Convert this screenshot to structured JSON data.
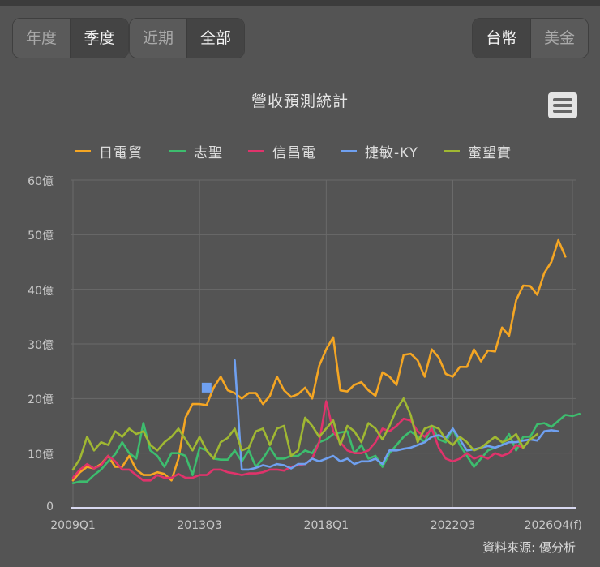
{
  "period_toggle": {
    "options": [
      {
        "label": "年度",
        "active": false
      },
      {
        "label": "季度",
        "active": true
      }
    ]
  },
  "range_toggle": {
    "options": [
      {
        "label": "近期",
        "active": false
      },
      {
        "label": "全部",
        "active": true
      }
    ]
  },
  "currency_toggle": {
    "options": [
      {
        "label": "台幣",
        "active": true
      },
      {
        "label": "美金",
        "active": false
      }
    ]
  },
  "menu_icon": "hamburger-menu-icon",
  "source_credit": "資料來源: 優分析",
  "chart_data": {
    "type": "line",
    "title": "營收預測統計",
    "xlabel": "",
    "ylabel": "",
    "unit": "億",
    "ylim": [
      0,
      60
    ],
    "yticks": [
      "0",
      "10億",
      "20億",
      "30億",
      "40億",
      "50億",
      "60億"
    ],
    "xticks": [
      "2009Q1",
      "2013Q3",
      "2018Q1",
      "2022Q3",
      "2026Q4(f)"
    ],
    "grid": true,
    "legend_position": "top",
    "x_start": "2009Q1",
    "x_end": "2026Q4",
    "series": [
      {
        "name": "日電貿",
        "color": "#f5a623",
        "start": 0,
        "values": [
          5.0,
          6.5,
          7.5,
          7.2,
          8.0,
          9.5,
          7.5,
          7.5,
          9.5,
          7.0,
          6.0,
          6.0,
          6.5,
          6.2,
          5.0,
          9.0,
          16.5,
          19.0,
          19.0,
          18.8,
          22.0,
          24.0,
          21.5,
          21.0,
          20.0,
          21.0,
          21.0,
          19.0,
          20.5,
          24.0,
          21.5,
          20.3,
          20.8,
          22.0,
          20.0,
          26.0,
          29.0,
          31.2,
          21.5,
          21.3,
          22.5,
          23.0,
          21.5,
          20.5,
          24.8,
          24.0,
          22.5,
          28.0,
          28.2,
          27.0,
          24.0,
          29.0,
          27.5,
          24.5,
          24.0,
          25.8,
          25.8,
          29.0,
          26.8,
          28.8,
          28.6,
          33.0,
          31.5,
          38.0,
          40.7,
          40.6,
          39.0,
          43.0,
          45.0,
          49.0,
          46.0
        ]
      },
      {
        "name": "志聖",
        "color": "#3dbd6e",
        "start": 0,
        "values": [
          4.5,
          4.8,
          4.8,
          6.0,
          7.0,
          8.5,
          9.8,
          12.0,
          10.0,
          9.0,
          15.5,
          10.5,
          9.5,
          7.5,
          10.0,
          10.0,
          9.5,
          6.0,
          11.0,
          10.5,
          9.0,
          8.8,
          8.8,
          10.5,
          8.5,
          10.5,
          7.5,
          9.0,
          11.0,
          9.0,
          9.0,
          9.5,
          9.5,
          10.5,
          10.0,
          12.0,
          12.5,
          13.5,
          13.8,
          14.0,
          10.0,
          11.5,
          9.0,
          9.5,
          7.5,
          10.0,
          11.5,
          13.0,
          14.0,
          13.0,
          12.0,
          15.0,
          12.5,
          12.0,
          14.5,
          11.5,
          9.5,
          7.5,
          9.0,
          10.5,
          11.0,
          11.5,
          13.5,
          10.5,
          13.0,
          13.0,
          15.3,
          15.5,
          14.8,
          15.9,
          17.0,
          16.8,
          17.2
        ]
      },
      {
        "name": "信昌電",
        "color": "#e0336b",
        "start": 0,
        "values": [
          5.5,
          7.0,
          8.0,
          7.2,
          7.8,
          9.5,
          8.5,
          7.0,
          7.0,
          6.0,
          5.0,
          5.0,
          6.0,
          5.5,
          5.5,
          6.2,
          5.5,
          5.5,
          6.0,
          6.0,
          7.0,
          7.0,
          6.5,
          6.3,
          6.0,
          6.3,
          6.3,
          6.5,
          7.0,
          7.0,
          6.8,
          7.5,
          7.8,
          8.0,
          9.0,
          12.0,
          19.5,
          14.0,
          12.0,
          10.5,
          10.0,
          10.0,
          10.5,
          12.0,
          14.5,
          14.0,
          15.0,
          16.3,
          16.0,
          14.0,
          13.0,
          14.5,
          11.0,
          9.0,
          8.5,
          9.0,
          10.0,
          9.0,
          9.5,
          9.0,
          10.0,
          9.5,
          10.0,
          11.5,
          11.0
        ]
      },
      {
        "name": "捷敏-KY",
        "color": "#6fa0f0",
        "start": 23,
        "values": [
          27.0,
          7.0,
          7.0,
          7.3,
          7.8,
          7.5,
          8.0,
          7.8,
          7.2,
          8.0,
          8.0,
          9.0,
          8.5,
          9.0,
          9.5,
          8.5,
          9.0,
          8.0,
          8.5,
          8.5,
          9.0,
          8.0,
          10.5,
          10.5,
          10.8,
          11.0,
          11.5,
          12.0,
          13.0,
          13.3,
          12.8,
          14.5,
          12.5,
          10.5,
          10.7,
          11.0,
          11.3,
          11.0,
          11.5,
          12.0,
          12.0,
          12.3,
          12.5,
          12.3,
          14.0,
          14.2,
          14.0
        ]
      },
      {
        "name": "蜜望實",
        "color": "#a0b832",
        "start": 0,
        "values": [
          7.0,
          9.0,
          13.0,
          10.5,
          12.0,
          11.5,
          14.0,
          13.0,
          14.5,
          13.5,
          14.0,
          11.5,
          10.5,
          12.0,
          13.0,
          14.5,
          12.5,
          10.5,
          13.0,
          10.5,
          9.0,
          12.0,
          12.8,
          14.5,
          10.5,
          11.0,
          14.0,
          14.5,
          11.5,
          14.5,
          15.0,
          9.5,
          10.5,
          16.5,
          15.0,
          13.0,
          14.5,
          16.0,
          11.5,
          15.0,
          14.0,
          12.0,
          15.5,
          14.5,
          12.5,
          15.0,
          18.0,
          20.0,
          17.0,
          12.0,
          14.5,
          15.0,
          14.5,
          12.5,
          11.5,
          13.0,
          12.0,
          10.5,
          11.0,
          12.0,
          13.0,
          12.0,
          12.5,
          13.5,
          11.0,
          12.5,
          13.5
        ]
      }
    ],
    "annotations": [
      {
        "type": "marker",
        "series": "捷敏-KY",
        "x": "2013Q4",
        "value": 22.0,
        "shape": "square"
      }
    ]
  }
}
